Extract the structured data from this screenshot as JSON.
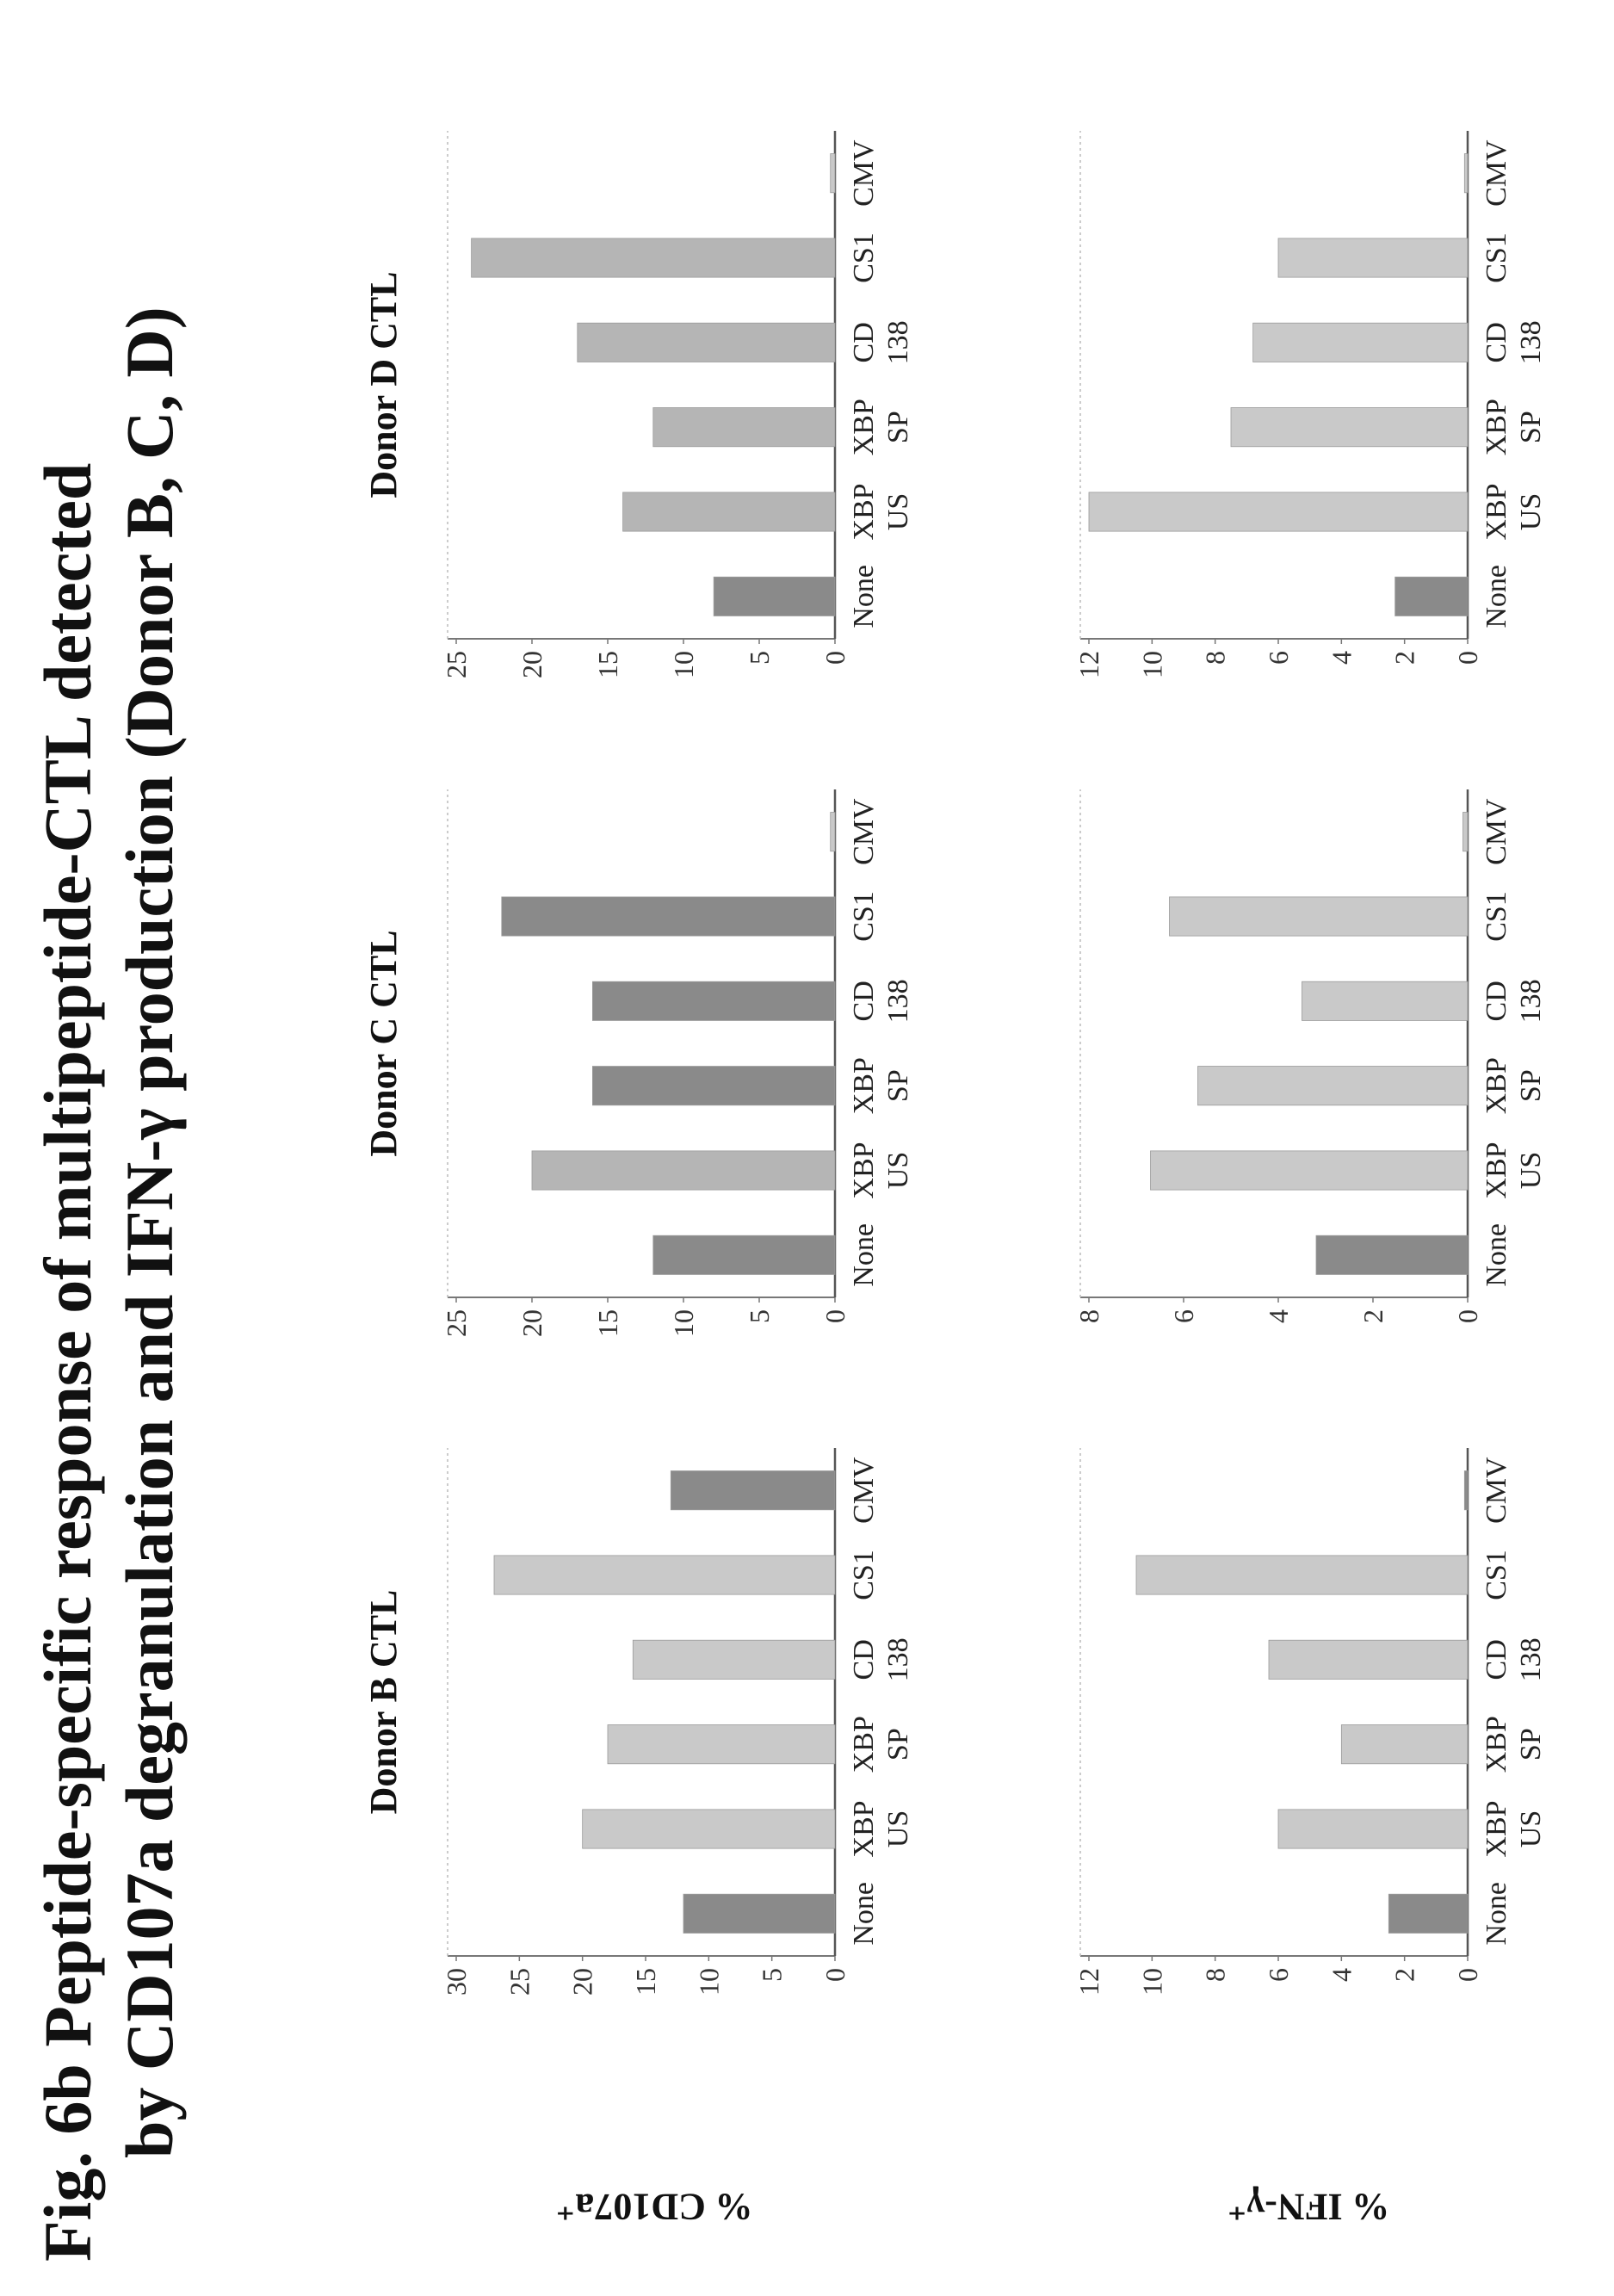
{
  "figure": {
    "title_line1": "Fig. 6b  Peptide-specific response of multipeptide-CTL detected",
    "title_line2": "by CD107a degranulation and IFN-γ production (Donor B, C, D)"
  },
  "y_labels": {
    "cd107a": "% CD107a⁺",
    "ifng": "% IFN-γ⁺"
  },
  "chart_data": [
    {
      "type": "bar",
      "row": "cd107a",
      "title": "Donor B CTL",
      "categories": [
        "None",
        "XBP US",
        "XBP SP",
        "CD 138",
        "CS1",
        "CMV"
      ],
      "values": [
        12,
        20,
        18,
        16,
        27,
        13
      ],
      "ylim": [
        0,
        30
      ],
      "yticks": [
        0,
        5,
        10,
        15,
        20,
        25,
        30
      ],
      "colors": [
        "#8a8a8a",
        "#c9c9c9",
        "#c9c9c9",
        "#c9c9c9",
        "#c9c9c9",
        "#8a8a8a"
      ]
    },
    {
      "type": "bar",
      "row": "cd107a",
      "title": "Donor C CTL",
      "categories": [
        "None",
        "XBP US",
        "XBP SP",
        "CD 138",
        "CS1",
        "CMV"
      ],
      "values": [
        12,
        20,
        16,
        16,
        22,
        0.3
      ],
      "ylim": [
        0,
        25
      ],
      "yticks": [
        0,
        5,
        10,
        15,
        20,
        25
      ],
      "colors": [
        "#8a8a8a",
        "#b5b5b5",
        "#8a8a8a",
        "#8a8a8a",
        "#8a8a8a",
        "#c9c9c9"
      ]
    },
    {
      "type": "bar",
      "row": "cd107a",
      "title": "Donor D CTL",
      "categories": [
        "None",
        "XBP US",
        "XBP SP",
        "CD 138",
        "CS1",
        "CMV"
      ],
      "values": [
        8,
        14,
        12,
        17,
        24,
        0.3
      ],
      "ylim": [
        0,
        25
      ],
      "yticks": [
        0,
        5,
        10,
        15,
        20,
        25
      ],
      "colors": [
        "#8a8a8a",
        "#b5b5b5",
        "#b5b5b5",
        "#b5b5b5",
        "#b5b5b5",
        "#c9c9c9"
      ]
    },
    {
      "type": "bar",
      "row": "ifng",
      "title": "",
      "categories": [
        "None",
        "XBP US",
        "XBP SP",
        "CD 138",
        "CS1",
        "CMV"
      ],
      "values": [
        2.5,
        6,
        4,
        6.3,
        10.5,
        0.1
      ],
      "ylim": [
        0,
        12
      ],
      "yticks": [
        0,
        2,
        4,
        6,
        8,
        10,
        12
      ],
      "colors": [
        "#8a8a8a",
        "#c9c9c9",
        "#c9c9c9",
        "#c9c9c9",
        "#c9c9c9",
        "#8a8a8a"
      ]
    },
    {
      "type": "bar",
      "row": "ifng",
      "title": "",
      "categories": [
        "None",
        "XBP US",
        "XBP SP",
        "CD 138",
        "CS1",
        "CMV"
      ],
      "values": [
        3.2,
        6.7,
        5.7,
        3.5,
        6.3,
        0.1
      ],
      "ylim": [
        0,
        8
      ],
      "yticks": [
        0,
        2,
        4,
        6,
        8
      ],
      "colors": [
        "#8a8a8a",
        "#c9c9c9",
        "#c9c9c9",
        "#c9c9c9",
        "#c9c9c9",
        "#c9c9c9"
      ]
    },
    {
      "type": "bar",
      "row": "ifng",
      "title": "",
      "categories": [
        "None",
        "XBP US",
        "XBP SP",
        "CD 138",
        "CS1",
        "CMV"
      ],
      "values": [
        2.3,
        12,
        7.5,
        6.8,
        6,
        0.1
      ],
      "ylim": [
        0,
        12
      ],
      "yticks": [
        0,
        2,
        4,
        6,
        8,
        10,
        12
      ],
      "colors": [
        "#8a8a8a",
        "#c9c9c9",
        "#c9c9c9",
        "#c9c9c9",
        "#c9c9c9",
        "#c9c9c9"
      ]
    }
  ]
}
